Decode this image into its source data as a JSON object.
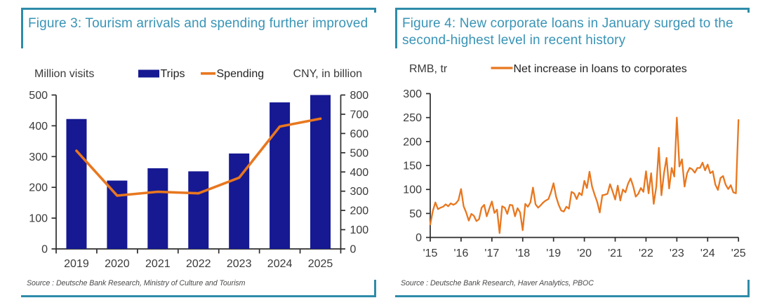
{
  "figure3": {
    "title_lines": [
      "Figure 3: Tourism arrivals and spending further improved"
    ],
    "left_axis_unit": "Million visits",
    "right_axis_unit": "CNY, in billion",
    "legend": {
      "bar_label": "Trips",
      "line_label": "Spending"
    },
    "source": "Source : Deutsche Bank Research, Ministry of Culture and Tourism",
    "chart_data": {
      "type": "bar+line",
      "title": "Tourism arrivals and spending",
      "categories": [
        "2019",
        "2020",
        "2021",
        "2022",
        "2023",
        "2024",
        "2025"
      ],
      "series": [
        {
          "name": "Trips",
          "type": "bar",
          "axis": "left",
          "values": [
            422,
            222,
            262,
            252,
            310,
            476,
            500
          ]
        },
        {
          "name": "Spending",
          "type": "line",
          "axis": "right",
          "values": [
            510,
            277,
            297,
            289,
            370,
            636,
            677
          ]
        }
      ],
      "left_ylabel": "Million visits",
      "right_ylabel": "CNY, in billion",
      "left_ylim": [
        0,
        500
      ],
      "left_yticks": [
        0,
        100,
        200,
        300,
        400,
        500
      ],
      "right_ylim": [
        0,
        800
      ],
      "right_yticks": [
        0,
        100,
        200,
        300,
        400,
        500,
        600,
        700,
        800
      ],
      "grid": false,
      "legend_position": "top"
    }
  },
  "figure4": {
    "title_lines": [
      "Figure 4: New corporate loans in January surged to the",
      "second-highest level in recent history"
    ],
    "y_axis_unit": "RMB, tr",
    "legend": {
      "line_label": "Net increase in loans to corporates"
    },
    "source": "Source : Deutsche Bank Research, Haver Analytics, PBOC",
    "chart_data": {
      "type": "line",
      "title": "Net increase in loans to corporates",
      "x_start": "Jan 2015",
      "x_end": "Jan 2025",
      "x_frequency": "monthly",
      "x_tick_labels": [
        "'15",
        "'16",
        "'17",
        "'18",
        "'19",
        "'20",
        "'21",
        "'22",
        "'23",
        "'24",
        "'25"
      ],
      "ylim": [
        0,
        300
      ],
      "yticks": [
        0,
        50,
        100,
        150,
        200,
        250,
        300
      ],
      "grid": false,
      "legend_position": "top",
      "values": [
        27,
        55,
        73,
        59,
        62,
        64,
        69,
        65,
        71,
        68,
        71,
        78,
        101,
        65,
        52,
        35,
        49,
        45,
        34,
        38,
        62,
        68,
        44,
        60,
        75,
        51,
        58,
        9,
        65,
        62,
        49,
        68,
        67,
        44,
        61,
        52,
        15,
        70,
        64,
        73,
        104,
        69,
        62,
        67,
        73,
        77,
        80,
        94,
        113,
        85,
        68,
        56,
        54,
        64,
        60,
        95,
        92,
        80,
        93,
        88,
        118,
        103,
        137,
        106,
        89,
        74,
        52,
        88,
        89,
        91,
        111,
        96,
        79,
        108,
        77,
        100,
        94,
        112,
        123,
        107,
        85,
        91,
        103,
        95,
        138,
        92,
        134,
        70,
        106,
        187,
        88,
        134,
        166,
        102,
        145,
        127,
        250,
        148,
        163,
        106,
        134,
        145,
        142,
        135,
        145,
        145,
        156,
        140,
        152,
        134,
        138,
        110,
        99,
        124,
        128,
        110,
        101,
        109,
        94,
        92,
        245
      ]
    }
  },
  "colors": {
    "frame_teal": "#2E8CA9",
    "title_teal": "#3994B6",
    "bar_navy": "#161992",
    "line_orange": "#E8771F",
    "axis_line": "#2D2D2D",
    "axis_label": "#3A3A3A",
    "source_gray": "#4A4A4A"
  }
}
